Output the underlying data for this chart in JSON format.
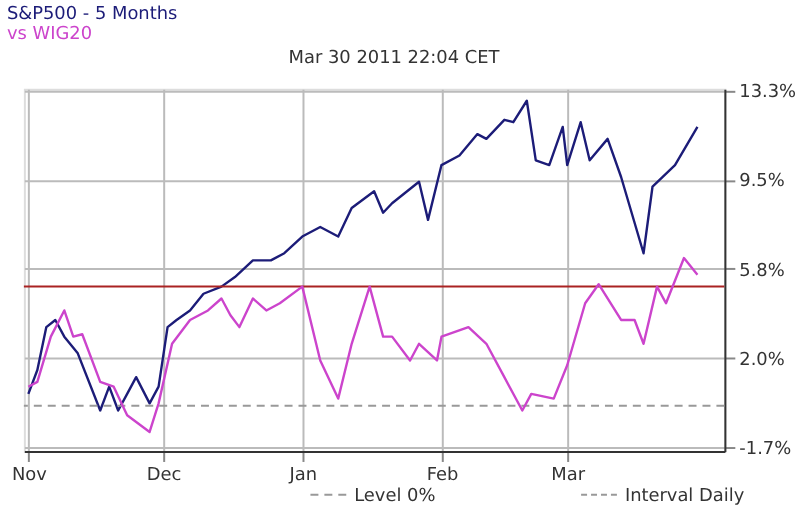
{
  "chart_data": {
    "type": "line",
    "title": "S&P500 - 5 Months",
    "subtitle": "vs WIG20",
    "annotations": [
      "Mar 30 2011 22:04 CET",
      "Interval Daily"
    ],
    "xlim": [
      "2010-10-31",
      "2011-04-05"
    ],
    "xticks": [
      {
        "value": "2010-11-01",
        "label": "Nov"
      },
      {
        "value": "2010-12-01",
        "label": "Dec"
      },
      {
        "value": "2011-01-01",
        "label": "Jan"
      },
      {
        "value": "2011-02-01",
        "label": "Feb"
      },
      {
        "value": "2011-03-01",
        "label": "Mar"
      }
    ],
    "ylim": [
      -1.9,
      13.3
    ],
    "yticks": [
      {
        "value": -1.75,
        "label": "-1.7%"
      },
      {
        "value": 2.0,
        "label": "2.0%"
      },
      {
        "value": 5.75,
        "label": "5.8%"
      },
      {
        "value": 9.5,
        "label": "9.5%"
      },
      {
        "value": 13.25,
        "label": "13.3%"
      }
    ],
    "grid": true,
    "marker": "none",
    "line_style": "solid",
    "ref_lines": [
      {
        "axis": "y",
        "value": 0,
        "label": "Level 0%",
        "color": "#999999",
        "line_style": "dashed"
      },
      {
        "axis": "y",
        "value": 5.0,
        "color": "#aa2222",
        "line_style": "solid"
      }
    ],
    "series": [
      {
        "color": "#1c1c78",
        "x": [
          "2010-11-01",
          "2010-11-03",
          "2010-11-05",
          "2010-11-07",
          "2010-11-09",
          "2010-11-12",
          "2010-11-17",
          "2010-11-19",
          "2010-11-21",
          "2010-11-23",
          "2010-11-25",
          "2010-11-28",
          "2010-11-30",
          "2010-12-02",
          "2010-12-04",
          "2010-12-07",
          "2010-12-10",
          "2010-12-14",
          "2010-12-17",
          "2010-12-21",
          "2010-12-25",
          "2010-12-28",
          "2011-01-01",
          "2011-01-05",
          "2011-01-09",
          "2011-01-12",
          "2011-01-17",
          "2011-01-19",
          "2011-01-21",
          "2011-01-27",
          "2011-01-29",
          "2011-02-01",
          "2011-02-05",
          "2011-02-09",
          "2011-02-11",
          "2011-02-15",
          "2011-02-17",
          "2011-02-20",
          "2011-02-22",
          "2011-02-25",
          "2011-02-28",
          "2011-03-01",
          "2011-03-04",
          "2011-03-06",
          "2011-03-10",
          "2011-03-13",
          "2011-03-18",
          "2011-03-20",
          "2011-03-25",
          "2011-03-30"
        ],
        "values": [
          0.5,
          1.5,
          3.3,
          3.6,
          2.9,
          2.2,
          -0.2,
          0.8,
          -0.2,
          0.5,
          1.2,
          0.1,
          0.8,
          3.3,
          3.6,
          4.0,
          4.7,
          5.0,
          5.4,
          6.1,
          6.1,
          6.4,
          7.1,
          7.5,
          7.1,
          8.3,
          9.0,
          8.1,
          8.5,
          9.4,
          7.8,
          10.1,
          10.5,
          11.4,
          11.2,
          12.0,
          11.9,
          12.8,
          10.3,
          10.1,
          11.7,
          10.1,
          11.9,
          10.3,
          11.2,
          9.6,
          6.4,
          9.2,
          10.1,
          11.7
        ]
      },
      {
        "color": "#cc44cc",
        "x": [
          "2010-11-01",
          "2010-11-03",
          "2010-11-06",
          "2010-11-09",
          "2010-11-11",
          "2010-11-13",
          "2010-11-17",
          "2010-11-20",
          "2010-11-23",
          "2010-11-28",
          "2010-11-30",
          "2010-12-03",
          "2010-12-07",
          "2010-12-11",
          "2010-12-14",
          "2010-12-16",
          "2010-12-18",
          "2010-12-21",
          "2010-12-24",
          "2010-12-27",
          "2011-01-01",
          "2011-01-05",
          "2011-01-09",
          "2011-01-12",
          "2011-01-16",
          "2011-01-19",
          "2011-01-21",
          "2011-01-25",
          "2011-01-27",
          "2011-01-31",
          "2011-02-01",
          "2011-02-07",
          "2011-02-11",
          "2011-02-15",
          "2011-02-19",
          "2011-02-21",
          "2011-02-26",
          "2011-03-01",
          "2011-03-05",
          "2011-03-08",
          "2011-03-13",
          "2011-03-16",
          "2011-03-18",
          "2011-03-21",
          "2011-03-23",
          "2011-03-27",
          "2011-03-30"
        ],
        "values": [
          0.8,
          1.0,
          2.9,
          4.0,
          2.9,
          3.0,
          1.0,
          0.8,
          -0.4,
          -1.1,
          0.1,
          2.6,
          3.6,
          4.0,
          4.5,
          3.8,
          3.3,
          4.5,
          4.0,
          4.3,
          5.0,
          1.9,
          0.3,
          2.6,
          5.0,
          2.9,
          2.9,
          1.9,
          2.6,
          1.9,
          2.9,
          3.3,
          2.6,
          1.2,
          -0.2,
          0.5,
          0.3,
          1.7,
          4.3,
          5.1,
          3.6,
          3.6,
          2.6,
          5.0,
          4.3,
          6.2,
          5.5
        ]
      }
    ]
  }
}
